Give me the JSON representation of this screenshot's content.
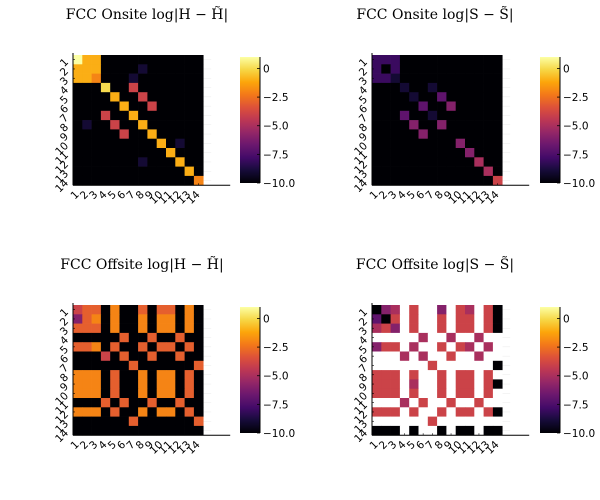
{
  "chart_data": [
    {
      "type": "heatmap",
      "title": "FCC Onsite log|H − H̃|",
      "x_tick_labels": [
        "1",
        "2",
        "3",
        "4",
        "5",
        "6",
        "7",
        "8",
        "9",
        "10",
        "11",
        "12",
        "13",
        "14"
      ],
      "y_tick_labels": [
        "1",
        "2",
        "3",
        "4",
        "5",
        "6",
        "7",
        "8",
        "9",
        "10",
        "11",
        "12",
        "13",
        "14"
      ],
      "colorbar_ticks": [
        "0",
        "−2.5",
        "−5.0",
        "−7.5",
        "−10.0"
      ],
      "colorbar_tick_values": [
        0,
        -2.5,
        -5.0,
        -7.5,
        -10.0
      ],
      "clim": [
        -10,
        1
      ],
      "colormap": "inferno",
      "grid": true,
      "values": [
        [
          1,
          -1,
          -1,
          -10,
          -10,
          -10,
          -10,
          -10,
          -10,
          -10,
          -10,
          -10,
          -10,
          -10
        ],
        [
          -1,
          -1,
          -1,
          -10,
          -10,
          -10,
          -10,
          -9,
          -10,
          -10,
          -10,
          -10,
          -10,
          -10
        ],
        [
          -1,
          -1,
          -2,
          -10,
          -10,
          -10,
          -9,
          -10,
          -10,
          -10,
          -10,
          -10,
          -10,
          -10
        ],
        [
          -10,
          -10,
          -10,
          0,
          -10,
          -10,
          -4,
          -10,
          -10,
          -10,
          -10,
          -10,
          -10,
          -10
        ],
        [
          -10,
          -10,
          -10,
          -10,
          -1,
          -10,
          -10,
          -4,
          -10,
          -10,
          -10,
          -10,
          -10,
          -10
        ],
        [
          -10,
          -10,
          -10,
          -10,
          -10,
          -1,
          -10,
          -10,
          -4,
          -10,
          -10,
          -10,
          -10,
          -10
        ],
        [
          -10,
          -10,
          -10,
          -4,
          -10,
          -10,
          -1,
          -10,
          -10,
          -10,
          -10,
          -10,
          -10,
          -10
        ],
        [
          -10,
          -9,
          -10,
          -10,
          -4,
          -10,
          -10,
          -1,
          -10,
          -10,
          -10,
          -10,
          -10,
          -10
        ],
        [
          -10,
          -10,
          -10,
          -10,
          -10,
          -4,
          -10,
          -10,
          -1,
          -10,
          -10,
          -10,
          -10,
          -10
        ],
        [
          -10,
          -10,
          -10,
          -10,
          -10,
          -10,
          -10,
          -10,
          -10,
          -1,
          -10,
          -9,
          -10,
          -10
        ],
        [
          -10,
          -10,
          -10,
          -10,
          -10,
          -10,
          -10,
          -10,
          -10,
          -10,
          -1,
          -10,
          -10,
          -10
        ],
        [
          -10,
          -10,
          -10,
          -10,
          -10,
          -10,
          -10,
          -9,
          -10,
          -10,
          -10,
          -1,
          -10,
          -10
        ],
        [
          -10,
          -10,
          -10,
          -10,
          -10,
          -10,
          -10,
          -10,
          -10,
          -10,
          -10,
          -10,
          -1,
          -10
        ],
        [
          -10,
          -10,
          -10,
          -10,
          -10,
          -10,
          -10,
          -10,
          -10,
          -10,
          -10,
          -10,
          -10,
          -2
        ]
      ]
    },
    {
      "type": "heatmap",
      "title": "FCC Onsite log|S − S̃|",
      "x_tick_labels": [
        "1",
        "2",
        "3",
        "4",
        "5",
        "6",
        "7",
        "8",
        "9",
        "10",
        "11",
        "12",
        "13",
        "14"
      ],
      "y_tick_labels": [
        "1",
        "2",
        "3",
        "4",
        "5",
        "6",
        "7",
        "8",
        "9",
        "10",
        "11",
        "12",
        "13",
        "14"
      ],
      "colorbar_ticks": [
        "0",
        "−2.5",
        "−5.0",
        "−7.5",
        "−10.0"
      ],
      "colorbar_tick_values": [
        0,
        -2.5,
        -5.0,
        -7.5,
        -10.0
      ],
      "clim": [
        -10,
        1
      ],
      "colormap": "inferno",
      "grid": true,
      "values": [
        [
          -8,
          -8,
          -8,
          -10,
          -10,
          -10,
          -10,
          -10,
          -10,
          -10,
          -10,
          -10,
          -10,
          -10
        ],
        [
          -8,
          -10,
          -8,
          -10,
          -10,
          -10,
          -10,
          -10,
          -10,
          -10,
          -10,
          -10,
          -10,
          -10
        ],
        [
          -8,
          -8,
          -9,
          -10,
          -10,
          -10,
          -10,
          -10,
          -10,
          -10,
          -10,
          -10,
          -10,
          -10
        ],
        [
          -10,
          -10,
          -10,
          -9,
          -10,
          -10,
          -9,
          -10,
          -10,
          -10,
          -10,
          -10,
          -10,
          -10
        ],
        [
          -10,
          -10,
          -10,
          -10,
          -9,
          -10,
          -10,
          -7,
          -10,
          -10,
          -10,
          -10,
          -10,
          -10
        ],
        [
          -10,
          -10,
          -10,
          -10,
          -10,
          -7,
          -10,
          -10,
          -6,
          -10,
          -10,
          -10,
          -10,
          -10
        ],
        [
          -10,
          -10,
          -10,
          -7,
          -10,
          -10,
          -9,
          -10,
          -10,
          -10,
          -10,
          -10,
          -10,
          -10
        ],
        [
          -10,
          -10,
          -10,
          -10,
          -6,
          -10,
          -10,
          -6,
          -10,
          -10,
          -10,
          -10,
          -10,
          -10
        ],
        [
          -10,
          -10,
          -10,
          -10,
          -10,
          -6,
          -10,
          -10,
          -10,
          -10,
          -10,
          -10,
          -10,
          -10
        ],
        [
          -10,
          -10,
          -10,
          -10,
          -10,
          -10,
          -10,
          -10,
          -10,
          -6,
          -10,
          -10,
          -10,
          -10
        ],
        [
          -10,
          -10,
          -10,
          -10,
          -10,
          -10,
          -10,
          -10,
          -10,
          -10,
          -6,
          -10,
          -10,
          -10
        ],
        [
          -10,
          -10,
          -10,
          -10,
          -10,
          -10,
          -10,
          -10,
          -10,
          -10,
          -10,
          -5,
          -10,
          -10
        ],
        [
          -10,
          -10,
          -10,
          -10,
          -10,
          -10,
          -10,
          -10,
          -10,
          -10,
          -10,
          -10,
          -5,
          -10
        ],
        [
          -10,
          -10,
          -10,
          -10,
          -10,
          -10,
          -10,
          -10,
          -10,
          -10,
          -10,
          -10,
          -10,
          -4
        ]
      ]
    },
    {
      "type": "heatmap",
      "title": "FCC Offsite log|H − H̃|",
      "x_tick_labels": [
        "1",
        "2",
        "3",
        "4",
        "5",
        "6",
        "7",
        "8",
        "9",
        "10",
        "11",
        "12",
        "13",
        "14"
      ],
      "y_tick_labels": [
        "1",
        "2",
        "3",
        "4",
        "5",
        "6",
        "7",
        "8",
        "9",
        "10",
        "11",
        "12",
        "13",
        "14"
      ],
      "colorbar_ticks": [
        "0",
        "−2.5",
        "−5.0",
        "−7.5",
        "−10.0"
      ],
      "colorbar_tick_values": [
        0,
        -2.5,
        -5.0,
        -7.5,
        -10.0
      ],
      "clim": [
        -10,
        1
      ],
      "colormap": "inferno",
      "grid": true,
      "values": [
        [
          -4,
          -3,
          -3,
          -10,
          -2,
          -10,
          -10,
          -3,
          -10,
          -3,
          -3,
          -10,
          -2,
          -10
        ],
        [
          -6,
          -3,
          -2,
          -10,
          -2,
          -10,
          -10,
          -2,
          -10,
          -2,
          -2,
          -10,
          -2,
          -10
        ],
        [
          -3,
          -3,
          -3,
          -10,
          -2,
          -10,
          -10,
          -2,
          -10,
          -2,
          -2,
          -10,
          -2,
          -10
        ],
        [
          -10,
          -10,
          -10,
          -10,
          -10,
          -3,
          -10,
          -10,
          -3,
          -10,
          -10,
          -3,
          -10,
          -10
        ],
        [
          -3,
          -3,
          -2,
          -10,
          -3,
          -10,
          -10,
          -3,
          -10,
          -3,
          -3,
          -10,
          -3,
          -10
        ],
        [
          -10,
          -10,
          -10,
          -4,
          -10,
          -3,
          -10,
          -10,
          -3,
          -10,
          -10,
          -3,
          -10,
          -10
        ],
        [
          -10,
          -10,
          -10,
          -10,
          -10,
          -10,
          -3,
          -10,
          -10,
          -10,
          -10,
          -10,
          -10,
          -3
        ],
        [
          -2,
          -2,
          -2,
          -10,
          -3,
          -10,
          -10,
          -2,
          -10,
          -2,
          -2,
          -10,
          -3,
          -10
        ],
        [
          -2,
          -2,
          -2,
          -10,
          -3,
          -10,
          -10,
          -2,
          -10,
          -2,
          -2,
          -10,
          -3,
          -10
        ],
        [
          -2,
          -2,
          -2,
          -10,
          -3,
          -10,
          -10,
          -2,
          -10,
          -2,
          -2,
          -10,
          -3,
          -10
        ],
        [
          -10,
          -10,
          -10,
          -3,
          -10,
          -3,
          -10,
          -10,
          -3,
          -10,
          -10,
          -3,
          -10,
          -10
        ],
        [
          -2,
          -2,
          -2,
          -10,
          -3,
          -10,
          -10,
          -2,
          -10,
          -2,
          -2,
          -10,
          -3,
          -10
        ],
        [
          -10,
          -10,
          -10,
          -10,
          -10,
          -10,
          -3,
          -10,
          -10,
          -10,
          -10,
          -10,
          -10,
          -3
        ],
        [
          -10,
          -10,
          -10,
          -10,
          -10,
          -10,
          -10,
          -10,
          -10,
          -10,
          -10,
          -10,
          -10,
          -10
        ]
      ]
    },
    {
      "type": "heatmap",
      "title": "FCC Offsite log|S − S̃|",
      "x_tick_labels": [
        "1",
        "2",
        "3",
        "4",
        "5",
        "6",
        "7",
        "8",
        "9",
        "10",
        "11",
        "12",
        "13",
        "14"
      ],
      "y_tick_labels": [
        "1",
        "2",
        "3",
        "4",
        "5",
        "6",
        "7",
        "8",
        "9",
        "10",
        "11",
        "12",
        "13",
        "14"
      ],
      "colorbar_ticks": [
        "0",
        "−2.5",
        "−5.0",
        "−7.5",
        "−10.0"
      ],
      "colorbar_tick_values": [
        0,
        -2.5,
        -5.0,
        -7.5,
        -10.0
      ],
      "clim": [
        -10,
        1
      ],
      "colormap": "inferno",
      "missing_color": "#ffffff",
      "grid": true,
      "values": [
        [
          -10,
          -6,
          -5,
          null,
          -4,
          null,
          null,
          -6,
          null,
          -4,
          -5,
          null,
          -4,
          -10
        ],
        [
          -7,
          -10,
          -4,
          null,
          -4,
          null,
          null,
          -4,
          null,
          -4,
          -4,
          null,
          -4,
          -10
        ],
        [
          -5,
          -4,
          -6,
          null,
          -4,
          null,
          null,
          -4,
          null,
          -4,
          -4,
          null,
          -4,
          -10
        ],
        [
          null,
          null,
          null,
          null,
          null,
          -5,
          null,
          null,
          -5,
          null,
          null,
          -5,
          null,
          null
        ],
        [
          -6,
          -4,
          -4,
          null,
          -5,
          null,
          null,
          -4,
          null,
          -4,
          -5,
          null,
          -5,
          null
        ],
        [
          null,
          null,
          null,
          -5,
          null,
          -5,
          null,
          null,
          -4,
          null,
          null,
          -5,
          null,
          null
        ],
        [
          null,
          null,
          null,
          null,
          null,
          null,
          -4,
          null,
          null,
          null,
          null,
          null,
          null,
          -10
        ],
        [
          -4,
          -4,
          -4,
          null,
          -4,
          null,
          null,
          -4,
          null,
          -4,
          -4,
          null,
          -4,
          null
        ],
        [
          -4,
          -4,
          -4,
          null,
          -5,
          null,
          null,
          -4,
          null,
          -4,
          -4,
          null,
          -4,
          -10
        ],
        [
          -4,
          -4,
          -4,
          null,
          -4,
          null,
          null,
          -4,
          null,
          -4,
          -4,
          null,
          -4,
          null
        ],
        [
          null,
          null,
          null,
          -5,
          null,
          -4,
          null,
          null,
          -4,
          null,
          null,
          -4,
          null,
          null
        ],
        [
          -4,
          -4,
          -4,
          null,
          -4,
          null,
          null,
          -4,
          null,
          -4,
          -4,
          null,
          -4,
          -10
        ],
        [
          null,
          null,
          null,
          null,
          null,
          null,
          -4,
          null,
          null,
          null,
          null,
          null,
          null,
          null
        ],
        [
          -10,
          -10,
          -10,
          null,
          -10,
          null,
          null,
          -10,
          null,
          -10,
          -10,
          null,
          -10,
          -10
        ]
      ]
    }
  ]
}
